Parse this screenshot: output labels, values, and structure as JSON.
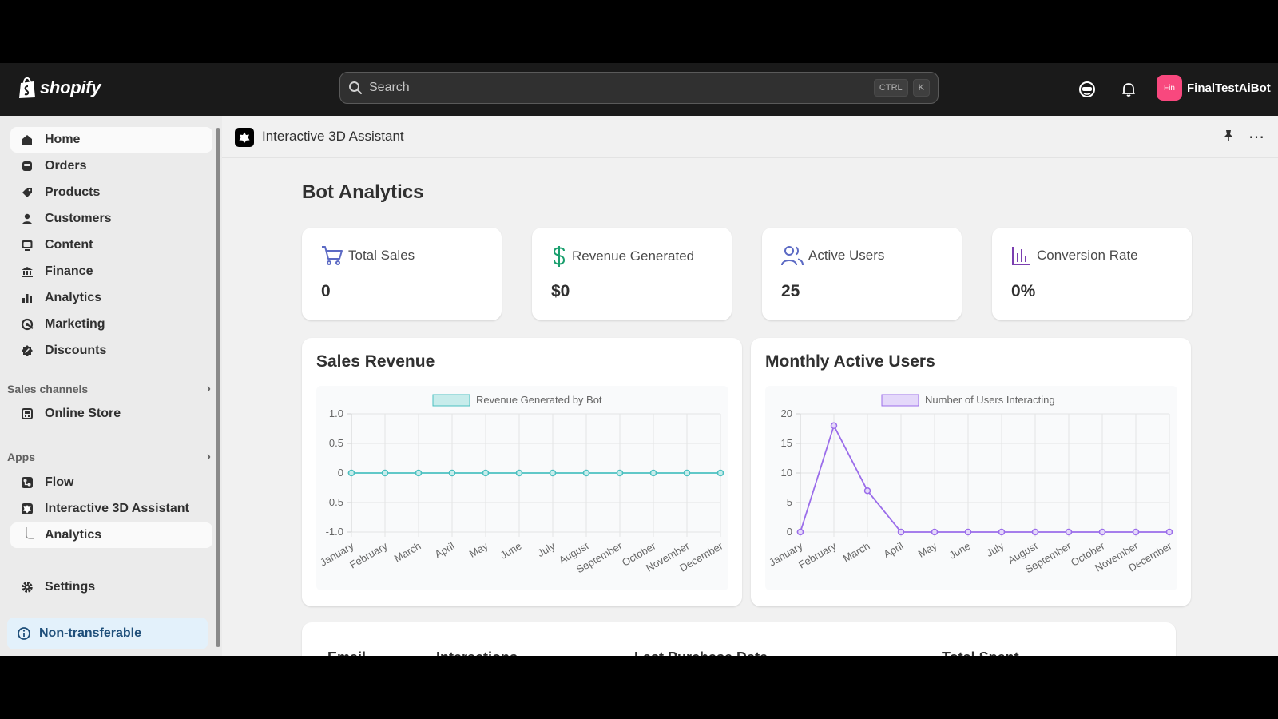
{
  "topbar": {
    "brand": "shopify",
    "search_placeholder": "Search",
    "shortcut_ctrl": "CTRL",
    "shortcut_k": "K",
    "avatar_initials": "Fin",
    "store_name": "FinalTestAiBot"
  },
  "sidebar": {
    "items": [
      {
        "label": "Home",
        "icon": "home-icon"
      },
      {
        "label": "Orders",
        "icon": "inbox-icon"
      },
      {
        "label": "Products",
        "icon": "tag-icon"
      },
      {
        "label": "Customers",
        "icon": "person-icon"
      },
      {
        "label": "Content",
        "icon": "content-icon"
      },
      {
        "label": "Finance",
        "icon": "bank-icon"
      },
      {
        "label": "Analytics",
        "icon": "bar-chart-icon"
      },
      {
        "label": "Marketing",
        "icon": "target-icon"
      },
      {
        "label": "Discounts",
        "icon": "discount-icon"
      }
    ],
    "sales_channels_heading": "Sales channels",
    "online_store": "Online Store",
    "apps_heading": "Apps",
    "flow": "Flow",
    "app_name": "Interactive 3D Assistant",
    "app_sub_analytics": "Analytics",
    "settings": "Settings",
    "non_transferable": "Non-transferable"
  },
  "app_header": {
    "title": "Interactive 3D Assistant"
  },
  "main": {
    "page_title": "Bot Analytics",
    "stats": [
      {
        "label": "Total Sales",
        "value": "0",
        "icon": "cart-icon",
        "color": "#5c6ac4"
      },
      {
        "label": "Revenue Generated",
        "value": "$0",
        "icon": "dollar-icon",
        "color": "#1a9f6e"
      },
      {
        "label": "Active Users",
        "value": "25",
        "icon": "users-icon",
        "color": "#5c6ac4"
      },
      {
        "label": "Conversion Rate",
        "value": "0%",
        "icon": "bar-chart-icon",
        "color": "#7b3fb0"
      }
    ],
    "table_headers": [
      "Email",
      "Interactions",
      "Last Purchase Date",
      "Total Spent"
    ]
  },
  "chart_data": [
    {
      "type": "line",
      "title": "Sales Revenue",
      "categories": [
        "January",
        "February",
        "March",
        "April",
        "May",
        "June",
        "July",
        "August",
        "September",
        "October",
        "November",
        "December"
      ],
      "series": [
        {
          "name": "Revenue Generated by Bot",
          "values": [
            0,
            0,
            0,
            0,
            0,
            0,
            0,
            0,
            0,
            0,
            0,
            0
          ]
        }
      ],
      "ylim": [
        -1.0,
        1.0
      ],
      "yticks": [
        "1.0",
        "0.5",
        "0",
        "-0.5",
        "-1.0"
      ],
      "color": "#4bc0c0",
      "fill": "#c7eceb",
      "grid": true,
      "legend": "top"
    },
    {
      "type": "line",
      "title": "Monthly Active Users",
      "categories": [
        "January",
        "February",
        "March",
        "April",
        "May",
        "June",
        "July",
        "August",
        "September",
        "October",
        "November",
        "December"
      ],
      "series": [
        {
          "name": "Number of Users Interacting",
          "values": [
            0,
            18,
            7,
            0,
            0,
            0,
            0,
            0,
            0,
            0,
            0,
            0
          ]
        }
      ],
      "ylim": [
        0,
        20
      ],
      "yticks": [
        "20",
        "15",
        "10",
        "5",
        "0"
      ],
      "color": "#9b6dea",
      "fill": "#e4d8fa",
      "grid": true,
      "legend": "top"
    }
  ]
}
